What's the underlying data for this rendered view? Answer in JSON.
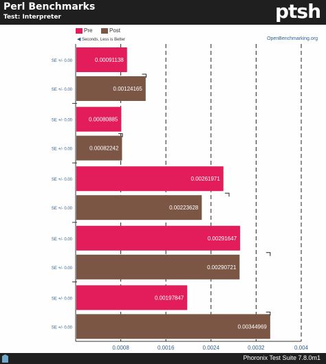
{
  "header": {
    "title": "Perl Benchmarks",
    "subtitle": "Test: Interpreter",
    "logo_text": "ptsh"
  },
  "legend_note": "Seconds, Less is Better",
  "site": "OpenBenchmarking.org",
  "footer": {
    "text": "Phoronix Test Suite 7.8.0m1"
  },
  "colors": {
    "pre": "#e31d5b",
    "post": "#7b5645",
    "axis": "#333333",
    "label": "#2f5d8a"
  },
  "chart_data": {
    "type": "bar",
    "orientation": "horizontal",
    "xlim": [
      0,
      0.004
    ],
    "xticks": [
      "0.0008",
      "0.0016",
      "0.0024",
      "0.0032",
      "0.004"
    ],
    "grid": true,
    "legend_position": "top-left",
    "series": [
      {
        "name": "Pre",
        "color": "#e31d5b",
        "values": [
          0.00091138,
          0.00080885,
          0.00261971,
          0.00291647,
          0.00197847
        ],
        "labels": [
          "0.00091138",
          "0.00080885",
          "0.00261971",
          "0.00291647",
          "0.00197847"
        ]
      },
      {
        "name": "Post",
        "color": "#7b5645",
        "values": [
          0.00124165,
          0.00082242,
          0.00223628,
          0.00290721,
          0.00344969
        ],
        "labels": [
          "0.00124165",
          "0.00082242",
          "0.00223628",
          "0.00290721",
          "0.00344969"
        ]
      }
    ],
    "bar_error_labels": "SE +/- 0.00",
    "error_bar_ends": [
      [
        0.00092,
        0.00125
      ],
      [
        0.00082,
        0.00083
      ],
      [
        0.00272,
        0.00223628
      ],
      [
        0.00291647,
        0.00345
      ],
      [
        0.00197847,
        0.00344969
      ]
    ]
  }
}
